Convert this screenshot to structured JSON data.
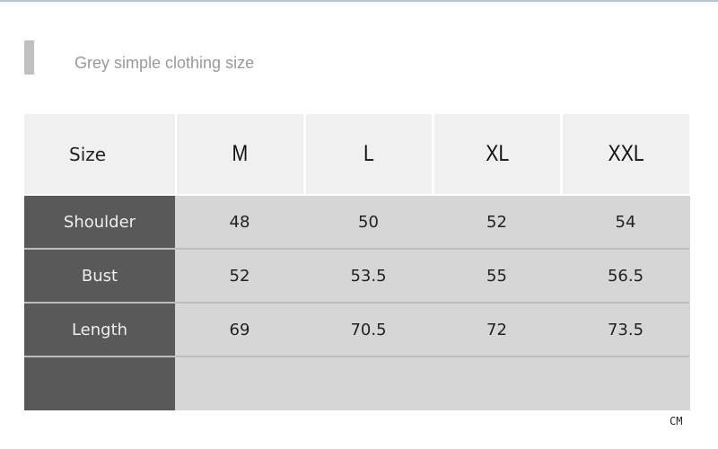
{
  "title": "Grey simple clothing size",
  "table": {
    "header_label": "Size",
    "sizes": [
      "M",
      "L",
      "XL",
      "XXL"
    ],
    "rows": [
      {
        "label": "Shoulder",
        "values": [
          "48",
          "50",
          "52",
          "54"
        ]
      },
      {
        "label": "Bust",
        "values": [
          "52",
          "53.5",
          "55",
          "56.5"
        ]
      },
      {
        "label": "Length",
        "values": [
          "69",
          "70.5",
          "72",
          "73.5"
        ]
      },
      {
        "label": "",
        "values": [
          "",
          "",
          "",
          ""
        ]
      }
    ]
  },
  "unit": "CM",
  "colors": {
    "label_bg": "#595959",
    "value_bg": "#d6d6d6",
    "header_bg": "#f0f0f0",
    "title": "#999999"
  }
}
